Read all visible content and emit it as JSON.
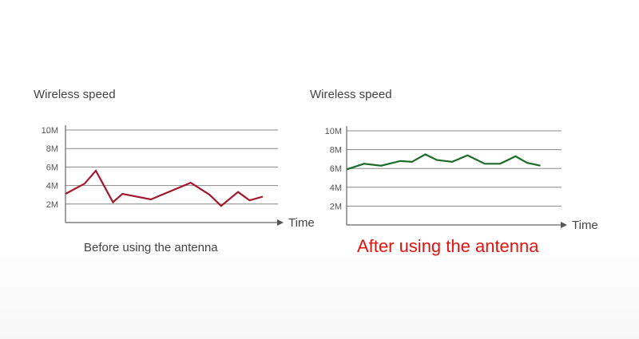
{
  "chart_data": [
    {
      "type": "line",
      "ylabel": "Wireless speed",
      "xlabel": "Time",
      "yticks": [
        {
          "value": 2,
          "label": "2M"
        },
        {
          "value": 4,
          "label": "4M"
        },
        {
          "value": 6,
          "label": "6M"
        },
        {
          "value": 8,
          "label": "8M"
        },
        {
          "value": 10,
          "label": "10M"
        }
      ],
      "ylim": [
        0,
        10.3
      ],
      "xlim": [
        0,
        11.2
      ],
      "grid": true,
      "caption": "Before using the antenna",
      "color": "#a3172a",
      "series": [
        {
          "name": "Before",
          "x": [
            0,
            1,
            1.6,
            2.5,
            3.0,
            4.5,
            5.2,
            6.6,
            7.6,
            8.2,
            9.1,
            9.7,
            10.4
          ],
          "y": [
            3.1,
            4.2,
            5.6,
            2.2,
            3.1,
            2.5,
            3.1,
            4.3,
            3.0,
            1.8,
            3.3,
            2.4,
            2.8
          ]
        }
      ]
    },
    {
      "type": "line",
      "ylabel": "Wireless speed",
      "xlabel": "Time",
      "yticks": [
        {
          "value": 2,
          "label": "2M"
        },
        {
          "value": 4,
          "label": "4M"
        },
        {
          "value": 6,
          "label": "6M"
        },
        {
          "value": 8,
          "label": "8M"
        },
        {
          "value": 10,
          "label": "10M"
        }
      ],
      "ylim": [
        0,
        10.3
      ],
      "xlim": [
        0,
        11.2
      ],
      "grid": true,
      "caption": "After using the antenna",
      "color": "#1e6b2c",
      "series": [
        {
          "name": "After",
          "x": [
            0,
            0.9,
            1.8,
            2.8,
            3.4,
            4.1,
            4.7,
            5.5,
            6.3,
            7.2,
            8.0,
            8.8,
            9.4,
            10.1
          ],
          "y": [
            5.9,
            6.5,
            6.3,
            6.8,
            6.7,
            7.5,
            6.9,
            6.7,
            7.4,
            6.5,
            6.5,
            7.3,
            6.6,
            6.3
          ]
        }
      ]
    }
  ]
}
